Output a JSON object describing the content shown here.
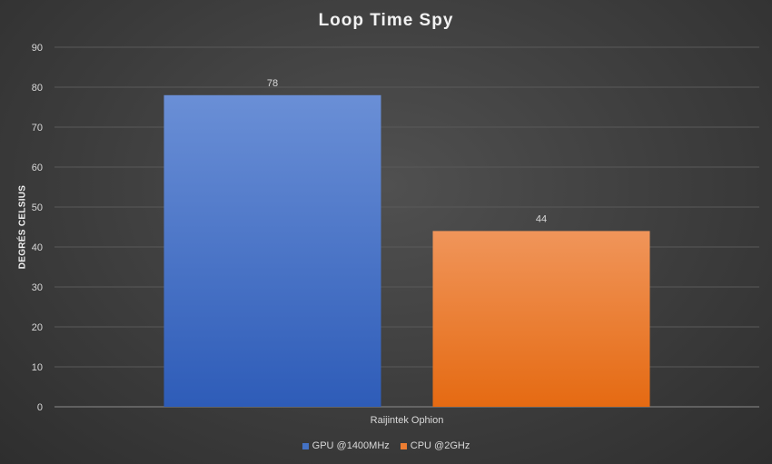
{
  "chart_data": {
    "type": "bar",
    "title": "Loop Time Spy",
    "ylabel": "DEGRÉS CELSIUS",
    "xlabel": "",
    "categories": [
      "Raijintek Ophion"
    ],
    "series": [
      {
        "name": "GPU @1400MHz",
        "values": [
          78
        ],
        "color": "#4472c4"
      },
      {
        "name": "CPU @2GHz",
        "values": [
          44
        ],
        "color": "#ed7d31"
      }
    ],
    "ylim": [
      0,
      90
    ],
    "yticks": [
      0,
      10,
      20,
      30,
      40,
      50,
      60,
      70,
      80,
      90
    ],
    "grid": true,
    "legend": "bottom"
  }
}
